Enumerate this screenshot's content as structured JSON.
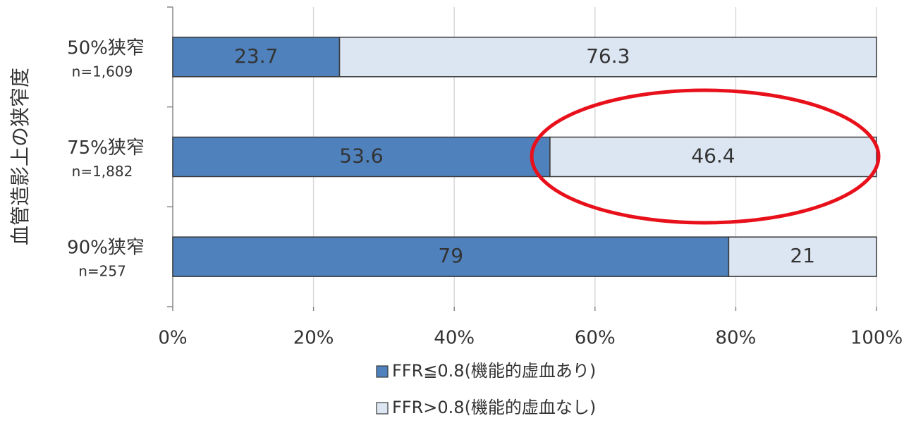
{
  "chart_data": {
    "type": "stacked-barh",
    "y_axis_label": "血管造影上の狭窄度",
    "categories": [
      "50%狭窄",
      "75%狭窄",
      "90%狭窄"
    ],
    "category_notes": [
      "n=1,609",
      "n=1,882",
      "n=257"
    ],
    "series": [
      {
        "name": "FFR≦0.8(機能的虚血あり)",
        "color": "#4f81bd",
        "values": [
          23.7,
          53.6,
          79
        ]
      },
      {
        "name": "FFR>0.8(機能的虚血なし)",
        "color": "#dce6f2",
        "values": [
          76.3,
          46.4,
          21
        ]
      }
    ],
    "xlim": [
      0,
      100
    ],
    "xticks": [
      {
        "value": 0,
        "label": "0%"
      },
      {
        "value": 20,
        "label": "20%"
      },
      {
        "value": 40,
        "label": "40%"
      },
      {
        "value": 60,
        "label": "60%"
      },
      {
        "value": 80,
        "label": "80%"
      },
      {
        "value": 100,
        "label": "100%"
      }
    ],
    "grid": true,
    "legend": "bottom"
  }
}
